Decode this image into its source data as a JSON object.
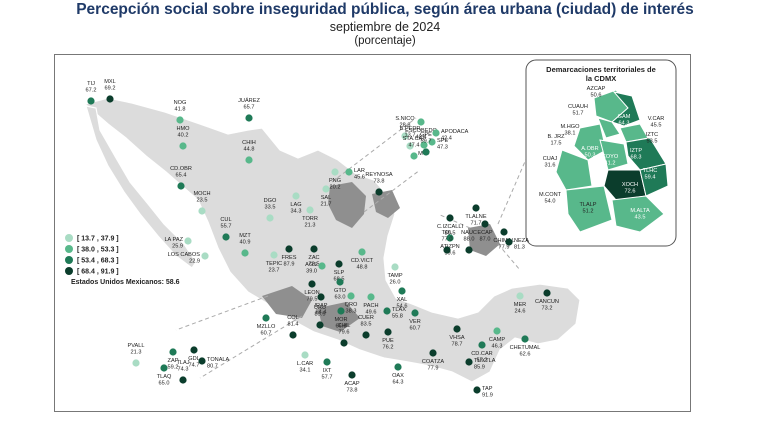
{
  "title": "Percepción social sobre inseguridad pública, según área urbana (ciudad) de interés",
  "subtitle": "septiembre de 2024",
  "unit": "(porcentaje)",
  "national": {
    "label": "Estados Unidos Mexicanos:",
    "value": "58.6"
  },
  "legend": [
    {
      "label": "[ 13.7 , 37.9 ]",
      "color": "#a9dcc4"
    },
    {
      "label": "[ 38.0 , 53.3 ]",
      "color": "#58b88b"
    },
    {
      "label": "[ 53.4 , 68.3 ]",
      "color": "#1f7a57"
    },
    {
      "label": "[ 68.4 , 91.9 ]",
      "color": "#0b3d2c"
    }
  ],
  "inset": {
    "title": "Demarcaciones territoriales de la CDMX",
    "labels": [
      {
        "name": "AZCAP",
        "value": "50.6",
        "light": false
      },
      {
        "name": "GAM",
        "value": "64.3",
        "light": true
      },
      {
        "name": "CUAUH",
        "value": "51.7",
        "light": false
      },
      {
        "name": "V.CAR",
        "value": "45.5",
        "light": false
      },
      {
        "name": "M.HGO",
        "value": "38.1",
        "light": false
      },
      {
        "name": "IZTC",
        "value": "53.5",
        "light": false
      },
      {
        "name": "B. JRZ",
        "value": "17.5",
        "light": false
      },
      {
        "name": "A.OBR",
        "value": "50.3",
        "light": true
      },
      {
        "name": "IZTP",
        "value": "68.3",
        "light": true
      },
      {
        "name": "CUAJ",
        "value": "31.6",
        "light": false
      },
      {
        "name": "COYO",
        "value": "41.2",
        "light": true
      },
      {
        "name": "TLHC",
        "value": "59.4",
        "light": true
      },
      {
        "name": "XOCH",
        "value": "72.6",
        "light": true
      },
      {
        "name": "M.CONT",
        "value": "54.0",
        "light": false
      },
      {
        "name": "TLALP",
        "value": "51.2",
        "light": false
      },
      {
        "name": "M.ALTA",
        "value": "43.5",
        "light": true
      }
    ]
  },
  "cities": [
    {
      "name": "TIJ",
      "value": "67.2",
      "c": 2
    },
    {
      "name": "MXL",
      "value": "69.2",
      "c": 3
    },
    {
      "name": "NOG",
      "value": "41.8",
      "c": 1
    },
    {
      "name": "HMO",
      "value": "40.2",
      "c": 1
    },
    {
      "name": "JUÁREZ",
      "value": "65.7",
      "c": 2
    },
    {
      "name": "CHIH",
      "value": "44.8",
      "c": 1
    },
    {
      "name": "CD.OBR",
      "value": "65.4",
      "c": 2
    },
    {
      "name": "MOCH",
      "value": "23.5",
      "c": 0
    },
    {
      "name": "LA PAZ",
      "value": "25.9",
      "c": 0
    },
    {
      "name": "LOS CABOS",
      "value": "22.9",
      "c": 0
    },
    {
      "name": "CUL",
      "value": "55.7",
      "c": 2
    },
    {
      "name": "MZT",
      "value": "40.9",
      "c": 1
    },
    {
      "name": "DGO",
      "value": "33.5",
      "c": 0
    },
    {
      "name": "LAG",
      "value": "34.3",
      "c": 0
    },
    {
      "name": "TORR",
      "value": "21.3",
      "c": 0
    },
    {
      "name": "SAL",
      "value": "21.7",
      "c": 0
    },
    {
      "name": "PNG",
      "value": "20.2",
      "c": 0
    },
    {
      "name": "LAR",
      "value": "45.6",
      "c": 1
    },
    {
      "name": "ESCOBEDO",
      "value": "40.4",
      "c": 1
    },
    {
      "name": "S.NICO",
      "value": "28.8",
      "c": 0
    },
    {
      "name": "APODACA",
      "value": "42.4",
      "c": 1
    },
    {
      "name": "B.PEDR",
      "value": "13.7",
      "c": 0
    },
    {
      "name": "SPE",
      "value": "47.3",
      "c": 1
    },
    {
      "name": "MTY",
      "value": "",
      "c": 1
    },
    {
      "name": "GPE",
      "value": "59.7",
      "c": 2
    },
    {
      "name": "STA.CAT",
      "value": "47.4",
      "c": 1
    },
    {
      "name": "REYNOSA",
      "value": "73.8",
      "c": 3
    },
    {
      "name": "TEPIC",
      "value": "23.7",
      "c": 0
    },
    {
      "name": "FRES",
      "value": "87.9",
      "c": 3
    },
    {
      "name": "ZAC",
      "value": "78.5",
      "c": 3
    },
    {
      "name": "AGS",
      "value": "39.0",
      "c": 1
    },
    {
      "name": "SLP",
      "value": "68.5",
      "c": 3
    },
    {
      "name": "CD.VICT",
      "value": "48.8",
      "c": 1
    },
    {
      "name": "TAMP",
      "value": "26.0",
      "c": 0
    },
    {
      "name": "LEON",
      "value": "79.5",
      "c": 3
    },
    {
      "name": "GTO",
      "value": "63.0",
      "c": 2
    },
    {
      "name": "QRO",
      "value": "38.3",
      "c": 1
    },
    {
      "name": "IRAP",
      "value": "84.4",
      "c": 3
    },
    {
      "name": "MOR",
      "value": "66.8",
      "c": 2
    },
    {
      "name": "PACH",
      "value": "49.6",
      "c": 1
    },
    {
      "name": "TLAX",
      "value": "55.8",
      "c": 2
    },
    {
      "name": "XAL",
      "value": "54.6",
      "c": 2
    },
    {
      "name": "VER",
      "value": "60.7",
      "c": 2
    },
    {
      "name": "C.IZCALLI",
      "value": "80.5",
      "c": 3
    },
    {
      "name": "TLALNE",
      "value": "71.7",
      "c": 3
    },
    {
      "name": "ECAP",
      "value": "87.0",
      "c": 3
    },
    {
      "name": "CHIMAL",
      "value": "77.9",
      "c": 3
    },
    {
      "name": "ATIZPN",
      "value": "59.6",
      "c": 2
    },
    {
      "name": "NEZA",
      "value": "81.3",
      "c": 3
    },
    {
      "name": "TOL",
      "value": "77.0",
      "c": 3
    },
    {
      "name": "NAUC",
      "value": "88.0",
      "c": 3
    },
    {
      "name": "MZLLO",
      "value": "60.7",
      "c": 2
    },
    {
      "name": "COL",
      "value": "81.4",
      "c": 3
    },
    {
      "name": "URU",
      "value": "85.5",
      "c": 3
    },
    {
      "name": "CHIL",
      "value": "79.6",
      "c": 3
    },
    {
      "name": "CUER",
      "value": "83.5",
      "c": 3
    },
    {
      "name": "PUE",
      "value": "76.2",
      "c": 3
    },
    {
      "name": "L.CAR",
      "value": "34.1",
      "c": 0
    },
    {
      "name": "IXT",
      "value": "57.7",
      "c": 2
    },
    {
      "name": "ACAP",
      "value": "73.8",
      "c": 3
    },
    {
      "name": "OAX",
      "value": "64.3",
      "c": 2
    },
    {
      "name": "COATZA",
      "value": "77.9",
      "c": 3
    },
    {
      "name": "VHSA",
      "value": "78.7",
      "c": 3
    },
    {
      "name": "CD.CAR",
      "value": "57.2",
      "c": 2
    },
    {
      "name": "CAMP",
      "value": "46.3",
      "c": 1
    },
    {
      "name": "TUXTLA",
      "value": "85.9",
      "c": 3
    },
    {
      "name": "TAP",
      "value": "91.9",
      "c": 3
    },
    {
      "name": "MER",
      "value": "24.6",
      "c": 0
    },
    {
      "name": "CANCUN",
      "value": "73.2",
      "c": 3
    },
    {
      "name": "CHETUMAL",
      "value": "62.6",
      "c": 2
    },
    {
      "name": "ZAP",
      "value": "59.2",
      "c": 2
    },
    {
      "name": "GDL",
      "value": "74.7",
      "c": 3
    },
    {
      "name": "PVALL",
      "value": "21.3",
      "c": 0
    },
    {
      "name": "TLAQ",
      "value": "65.0",
      "c": 2
    },
    {
      "name": "TONALA",
      "value": "80.7",
      "c": 3
    },
    {
      "name": "TLAJ",
      "value": "74.3",
      "c": 3
    }
  ]
}
